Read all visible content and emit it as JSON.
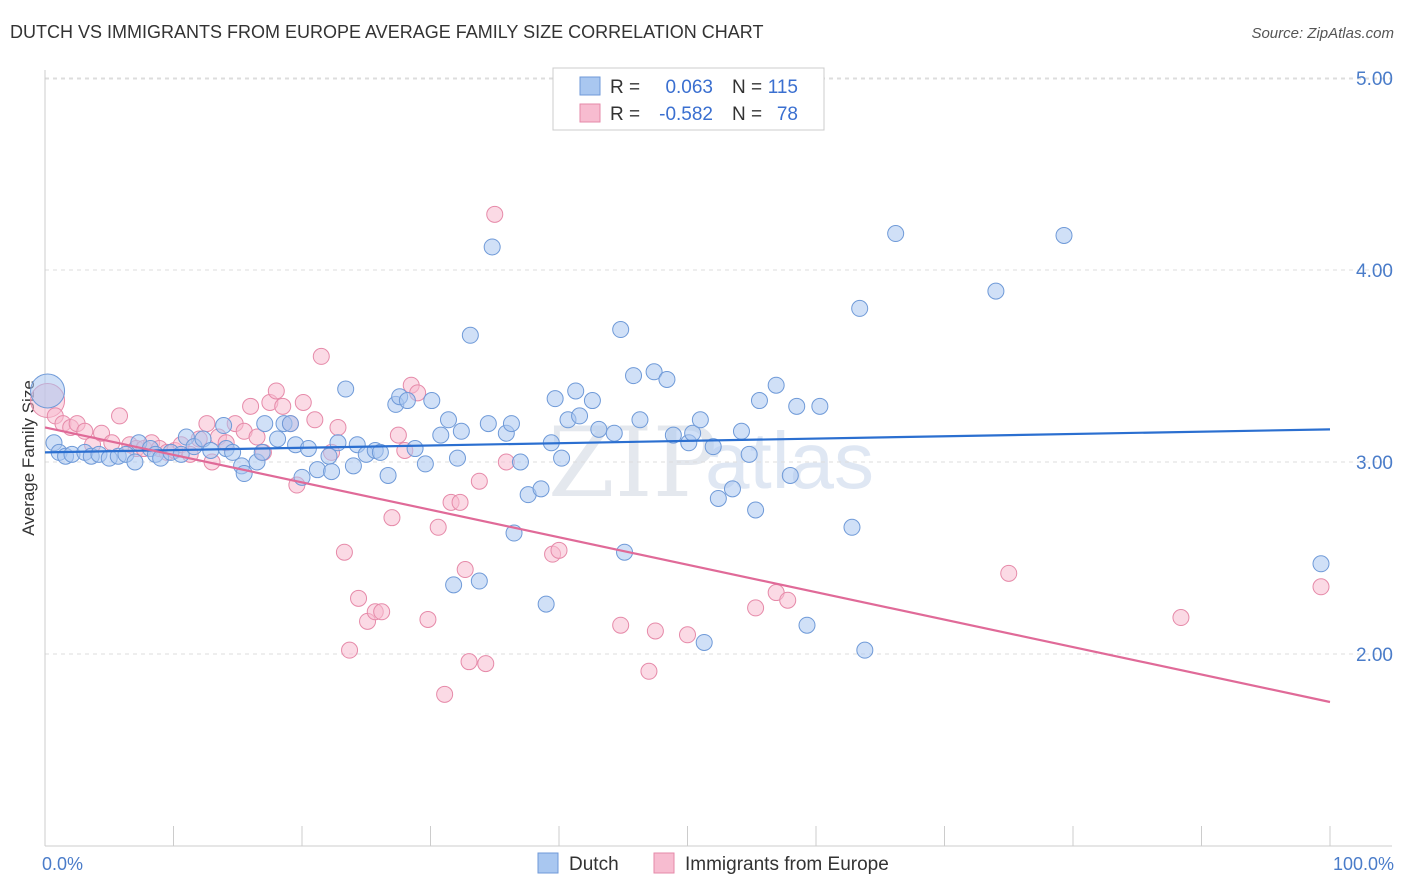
{
  "title": "DUTCH VS IMMIGRANTS FROM EUROPE AVERAGE FAMILY SIZE CORRELATION CHART",
  "source": "Source: ZipAtlas.com",
  "watermark": {
    "part1": "ZIP",
    "part2": "atlas"
  },
  "legend": {
    "rows": [
      {
        "r_label": "R =",
        "r_value": "0.063",
        "n_label": "N =",
        "n_value": "115",
        "color": "#a9c7f0",
        "stroke": "#6f9ad8"
      },
      {
        "r_label": "R =",
        "r_value": "-0.582",
        "n_label": "N =",
        "n_value": "78",
        "color": "#f7bcd0",
        "stroke": "#e68aa9"
      }
    ]
  },
  "bottom_legend": {
    "dutch": "Dutch",
    "immigrants": "Immigrants from Europe"
  },
  "colors": {
    "dutch_fill": "#a9c7f0",
    "dutch_stroke": "#6f9ad8",
    "dutch_line": "#2b6fd0",
    "imm_fill": "#f7bcd0",
    "imm_stroke": "#e68aa9",
    "imm_line": "#e06a98",
    "grid": "#dddddd",
    "axis_text": "#4a7cc9"
  },
  "chart_data": {
    "type": "scatter",
    "title": "DUTCH VS IMMIGRANTS FROM EUROPE AVERAGE FAMILY SIZE CORRELATION CHART",
    "xlabel": "",
    "ylabel": "Average Family Size",
    "xlim": [
      0,
      100
    ],
    "ylim": [
      1.0,
      5.1
    ],
    "x_tick_labels": [
      "0.0%",
      "100.0%"
    ],
    "y_ticks": [
      2.0,
      3.0,
      4.0,
      5.0
    ],
    "y_tick_labels": [
      "2.00",
      "3.00",
      "4.00",
      "5.00"
    ],
    "grid": "horizontal dashed",
    "legend_position": "top-center",
    "series": [
      {
        "name": "Dutch",
        "trend": {
          "x": [
            0,
            100
          ],
          "y": [
            3.05,
            3.17
          ]
        },
        "points": [
          [
            0.2,
            3.37
          ],
          [
            0.7,
            3.1
          ],
          [
            1.1,
            3.05
          ],
          [
            1.6,
            3.03
          ],
          [
            2.1,
            3.04
          ],
          [
            3.1,
            3.05
          ],
          [
            3.6,
            3.03
          ],
          [
            4.2,
            3.04
          ],
          [
            5.0,
            3.02
          ],
          [
            5.7,
            3.03
          ],
          [
            6.3,
            3.04
          ],
          [
            7.0,
            3.0
          ],
          [
            7.3,
            3.1
          ],
          [
            8.2,
            3.07
          ],
          [
            8.6,
            3.04
          ],
          [
            9.0,
            3.02
          ],
          [
            9.8,
            3.05
          ],
          [
            10.6,
            3.04
          ],
          [
            11.0,
            3.13
          ],
          [
            11.6,
            3.08
          ],
          [
            12.3,
            3.12
          ],
          [
            12.9,
            3.06
          ],
          [
            13.9,
            3.19
          ],
          [
            14.1,
            3.07
          ],
          [
            14.6,
            3.05
          ],
          [
            15.3,
            2.98
          ],
          [
            15.5,
            2.94
          ],
          [
            16.5,
            3.0
          ],
          [
            16.9,
            3.05
          ],
          [
            17.1,
            3.2
          ],
          [
            18.1,
            3.12
          ],
          [
            18.6,
            3.2
          ],
          [
            19.1,
            3.2
          ],
          [
            19.5,
            3.09
          ],
          [
            20.0,
            2.92
          ],
          [
            20.5,
            3.07
          ],
          [
            21.2,
            2.96
          ],
          [
            22.1,
            3.03
          ],
          [
            22.3,
            2.95
          ],
          [
            22.8,
            3.1
          ],
          [
            23.4,
            3.38
          ],
          [
            24.0,
            2.98
          ],
          [
            24.3,
            3.09
          ],
          [
            25.0,
            3.04
          ],
          [
            25.7,
            3.06
          ],
          [
            26.1,
            3.05
          ],
          [
            26.7,
            2.93
          ],
          [
            27.3,
            3.3
          ],
          [
            27.6,
            3.34
          ],
          [
            28.2,
            3.32
          ],
          [
            28.8,
            3.07
          ],
          [
            29.6,
            2.99
          ],
          [
            30.1,
            3.32
          ],
          [
            30.8,
            3.14
          ],
          [
            31.4,
            3.22
          ],
          [
            31.8,
            2.36
          ],
          [
            32.1,
            3.02
          ],
          [
            32.4,
            3.16
          ],
          [
            33.1,
            3.66
          ],
          [
            33.8,
            2.38
          ],
          [
            34.5,
            3.2
          ],
          [
            34.8,
            4.12
          ],
          [
            35.9,
            3.15
          ],
          [
            36.3,
            3.2
          ],
          [
            36.5,
            2.63
          ],
          [
            37.0,
            3.0
          ],
          [
            37.6,
            2.83
          ],
          [
            38.6,
            2.86
          ],
          [
            39.0,
            2.26
          ],
          [
            39.4,
            3.1
          ],
          [
            39.7,
            3.33
          ],
          [
            40.2,
            3.02
          ],
          [
            40.7,
            3.22
          ],
          [
            41.3,
            3.37
          ],
          [
            41.6,
            3.24
          ],
          [
            42.6,
            3.32
          ],
          [
            43.1,
            3.17
          ],
          [
            44.3,
            3.15
          ],
          [
            44.8,
            3.69
          ],
          [
            45.1,
            2.53
          ],
          [
            45.8,
            3.45
          ],
          [
            46.3,
            3.22
          ],
          [
            47.4,
            3.47
          ],
          [
            48.4,
            3.43
          ],
          [
            48.9,
            3.14
          ],
          [
            50.1,
            3.1
          ],
          [
            50.4,
            3.15
          ],
          [
            51.0,
            3.22
          ],
          [
            51.3,
            2.06
          ],
          [
            52.0,
            3.08
          ],
          [
            52.4,
            2.81
          ],
          [
            53.5,
            2.86
          ],
          [
            54.2,
            3.16
          ],
          [
            54.8,
            3.04
          ],
          [
            55.3,
            2.75
          ],
          [
            55.6,
            3.32
          ],
          [
            56.9,
            3.4
          ],
          [
            58.0,
            2.93
          ],
          [
            58.5,
            3.29
          ],
          [
            59.3,
            2.15
          ],
          [
            60.3,
            3.29
          ],
          [
            62.8,
            2.66
          ],
          [
            63.4,
            3.8
          ],
          [
            63.8,
            2.02
          ],
          [
            66.2,
            4.19
          ],
          [
            74.0,
            3.89
          ],
          [
            79.3,
            4.18
          ],
          [
            99.3,
            2.47
          ]
        ]
      },
      {
        "name": "Immigrants from Europe",
        "trend": {
          "x": [
            0,
            100
          ],
          "y": [
            3.18,
            1.75
          ]
        },
        "points": [
          [
            0.2,
            3.32
          ],
          [
            0.8,
            3.24
          ],
          [
            1.4,
            3.2
          ],
          [
            2.0,
            3.18
          ],
          [
            2.5,
            3.2
          ],
          [
            3.1,
            3.16
          ],
          [
            3.7,
            3.09
          ],
          [
            4.4,
            3.15
          ],
          [
            5.2,
            3.1
          ],
          [
            5.8,
            3.24
          ],
          [
            6.6,
            3.09
          ],
          [
            7.1,
            3.07
          ],
          [
            7.7,
            3.07
          ],
          [
            8.3,
            3.1
          ],
          [
            8.9,
            3.07
          ],
          [
            9.5,
            3.05
          ],
          [
            10.1,
            3.06
          ],
          [
            10.6,
            3.09
          ],
          [
            11.3,
            3.04
          ],
          [
            12.0,
            3.12
          ],
          [
            12.6,
            3.2
          ],
          [
            13.0,
            3.0
          ],
          [
            13.5,
            3.13
          ],
          [
            14.1,
            3.1
          ],
          [
            14.8,
            3.2
          ],
          [
            15.5,
            3.16
          ],
          [
            16.0,
            3.29
          ],
          [
            16.5,
            3.13
          ],
          [
            17.0,
            3.05
          ],
          [
            17.5,
            3.31
          ],
          [
            18.0,
            3.37
          ],
          [
            18.5,
            3.29
          ],
          [
            19.1,
            3.2
          ],
          [
            19.6,
            2.88
          ],
          [
            20.1,
            3.31
          ],
          [
            21.0,
            3.22
          ],
          [
            21.5,
            3.55
          ],
          [
            22.3,
            3.05
          ],
          [
            22.8,
            3.18
          ],
          [
            23.3,
            2.53
          ],
          [
            23.7,
            2.02
          ],
          [
            24.4,
            2.29
          ],
          [
            25.1,
            2.17
          ],
          [
            25.7,
            2.22
          ],
          [
            26.2,
            2.22
          ],
          [
            27.0,
            2.71
          ],
          [
            27.5,
            3.14
          ],
          [
            28.0,
            3.06
          ],
          [
            28.5,
            3.4
          ],
          [
            29.0,
            3.36
          ],
          [
            29.8,
            2.18
          ],
          [
            30.6,
            2.66
          ],
          [
            31.1,
            1.79
          ],
          [
            31.6,
            2.79
          ],
          [
            32.3,
            2.79
          ],
          [
            32.7,
            2.44
          ],
          [
            33.0,
            1.96
          ],
          [
            33.8,
            2.9
          ],
          [
            34.3,
            1.95
          ],
          [
            35.0,
            4.29
          ],
          [
            35.9,
            3.0
          ],
          [
            39.5,
            2.52
          ],
          [
            40.0,
            2.54
          ],
          [
            44.8,
            2.15
          ],
          [
            47.0,
            1.91
          ],
          [
            47.5,
            2.12
          ],
          [
            50.0,
            2.1
          ],
          [
            55.3,
            2.24
          ],
          [
            56.9,
            2.32
          ],
          [
            57.8,
            2.28
          ],
          [
            75.0,
            2.42
          ],
          [
            88.4,
            2.19
          ],
          [
            99.3,
            2.35
          ]
        ]
      }
    ]
  }
}
